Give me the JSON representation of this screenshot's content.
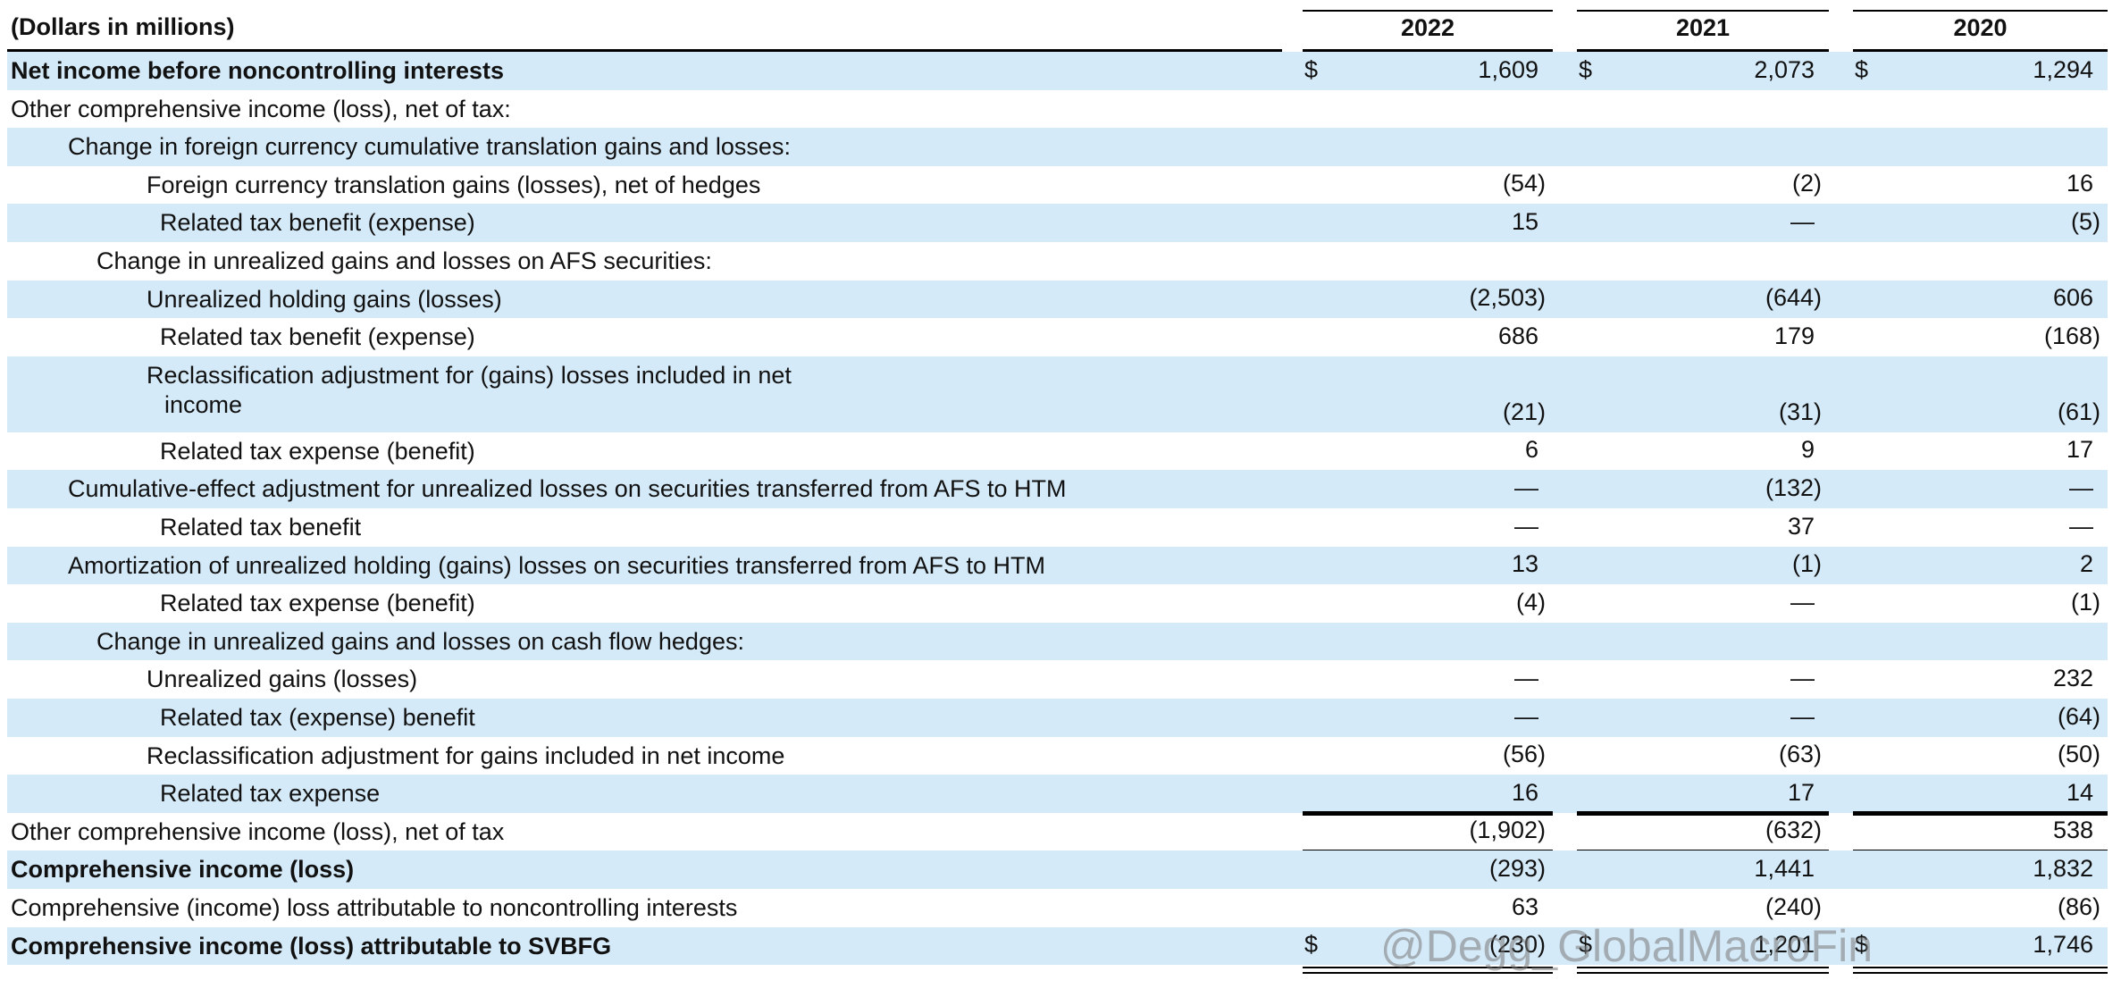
{
  "header": {
    "title": "(Dollars in millions)",
    "years": [
      "2022",
      "2021",
      "2020"
    ]
  },
  "rows": [
    {
      "label": "Net income before noncontrolling interests",
      "currency": "$",
      "values": [
        "1,609",
        "2,073",
        "1,294"
      ]
    },
    {
      "label": "Other comprehensive income (loss), net of tax:"
    },
    {
      "label": "Change in foreign currency cumulative translation gains and losses:"
    },
    {
      "label": "Foreign currency translation gains (losses), net of hedges",
      "values": [
        "(54)",
        "(2)",
        "16"
      ]
    },
    {
      "label": "Related tax benefit (expense)",
      "values": [
        "15",
        "—",
        "(5)"
      ]
    },
    {
      "label": "Change in unrealized gains and losses on AFS securities:"
    },
    {
      "label": "Unrealized holding gains (losses)",
      "values": [
        "(2,503)",
        "(644)",
        "606"
      ]
    },
    {
      "label": "Related tax benefit (expense)",
      "values": [
        "686",
        "179",
        "(168)"
      ]
    },
    {
      "label": "Reclassification adjustment for (gains) losses included in net",
      "label2": "income",
      "values": [
        "(21)",
        "(31)",
        "(61)"
      ]
    },
    {
      "label": "Related tax expense (benefit)",
      "values": [
        "6",
        "9",
        "17"
      ]
    },
    {
      "label": "Cumulative-effect adjustment for unrealized losses on securities transferred from AFS to HTM",
      "values": [
        "—",
        "(132)",
        "—"
      ]
    },
    {
      "label": "Related tax benefit",
      "values": [
        "—",
        "37",
        "—"
      ]
    },
    {
      "label": "Amortization of unrealized holding (gains) losses on securities transferred from AFS to HTM",
      "values": [
        "13",
        "(1)",
        "2"
      ]
    },
    {
      "label": "Related tax expense (benefit)",
      "values": [
        "(4)",
        "—",
        "(1)"
      ]
    },
    {
      "label": "Change in unrealized gains and losses on cash flow hedges:"
    },
    {
      "label": "Unrealized gains (losses)",
      "values": [
        "—",
        "—",
        "232"
      ]
    },
    {
      "label": "Related tax (expense) benefit",
      "values": [
        "—",
        "—",
        "(64)"
      ]
    },
    {
      "label": "Reclassification adjustment for gains included in net income",
      "values": [
        "(56)",
        "(63)",
        "(50)"
      ]
    },
    {
      "label": "Related tax expense",
      "values": [
        "16",
        "17",
        "14"
      ]
    },
    {
      "label": "Other comprehensive income (loss), net of tax",
      "values": [
        "(1,902)",
        "(632)",
        "538"
      ]
    },
    {
      "label": "Comprehensive income (loss)",
      "values": [
        "(293)",
        "1,441",
        "1,832"
      ]
    },
    {
      "label": "Comprehensive (income) loss attributable to noncontrolling interests",
      "values": [
        "63",
        "(240)",
        "(86)"
      ]
    },
    {
      "label": "Comprehensive income (loss) attributable to SVBFG",
      "currency": "$",
      "values": [
        "(230)",
        "1,201",
        "1,746"
      ]
    }
  ],
  "watermark": "@Degg_GlobalMacroFin"
}
